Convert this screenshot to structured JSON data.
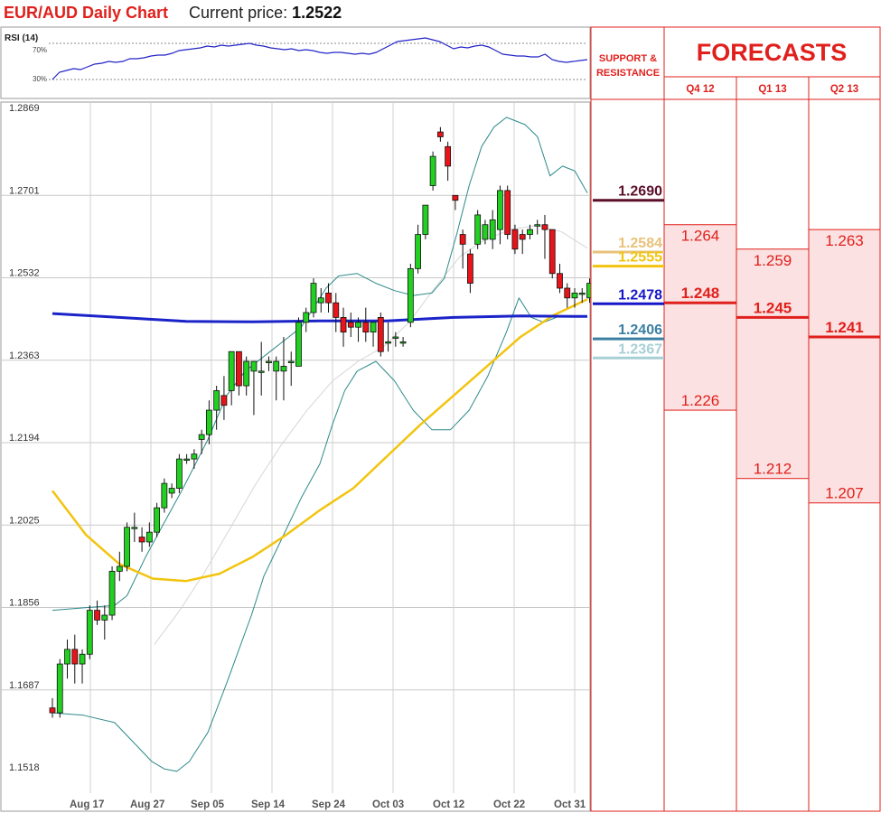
{
  "header": {
    "title": "EUR/AUD Daily Chart",
    "price_label": "Current price:",
    "price_value": "1.2522"
  },
  "rsi": {
    "label": "RSI (14)",
    "upper_label": "70%",
    "lower_label": "30%",
    "upper": 70,
    "lower": 30,
    "values": [
      30,
      38,
      40,
      42,
      41,
      44,
      47,
      48,
      50,
      49,
      50,
      53,
      53,
      54,
      56,
      57,
      57,
      59,
      62,
      63,
      64,
      65,
      67,
      66,
      68,
      67,
      68,
      69,
      70,
      68,
      67,
      65,
      64,
      63,
      64,
      62,
      63,
      62,
      60,
      59,
      60,
      60,
      59,
      58,
      59,
      58,
      60,
      64,
      68,
      72,
      73,
      74,
      75,
      76,
      74,
      72,
      68,
      64,
      66,
      65,
      67,
      68,
      66,
      62,
      58,
      57,
      56,
      56,
      55,
      55,
      58,
      52,
      50,
      49,
      50,
      51,
      52
    ]
  },
  "forecasts": {
    "title": "FORECASTS",
    "sr_header": "SUPPORT & RESISTANCE",
    "columns": [
      {
        "label": "Q4 12",
        "high": "1.264",
        "mid": "1.248",
        "low": "1.226",
        "high_v": 1.264,
        "mid_v": 1.248,
        "low_v": 1.226
      },
      {
        "label": "Q1 13",
        "high": "1.259",
        "mid": "1.245",
        "low": "1.212",
        "high_v": 1.259,
        "mid_v": 1.245,
        "low_v": 1.212
      },
      {
        "label": "Q2 13",
        "high": "1.263",
        "mid": "1.241",
        "low": "1.207",
        "high_v": 1.263,
        "mid_v": 1.241,
        "low_v": 1.207
      }
    ]
  },
  "levels": [
    {
      "label": "1.2690",
      "value": 1.269,
      "color": "#5a0f2a"
    },
    {
      "label": "1.2584",
      "value": 1.2584,
      "color": "#e8c27a"
    },
    {
      "label": "1.2555",
      "value": 1.2555,
      "color": "#f2c40f"
    },
    {
      "label": "1.2478",
      "value": 1.2478,
      "color": "#1717c9"
    },
    {
      "label": "1.2406",
      "value": 1.2406,
      "color": "#3a7ea2"
    },
    {
      "label": "1.2367",
      "value": 1.2367,
      "color": "#a8cfd6"
    }
  ],
  "chart_data": {
    "type": "candlestick",
    "title": "EUR/AUD Daily Chart",
    "ylim": [
      1.1518,
      1.2869
    ],
    "y_ticks": [
      "1.2869",
      "1.2701",
      "1.2532",
      "1.2363",
      "1.2194",
      "1.2025",
      "1.1856",
      "1.1687",
      "1.1518"
    ],
    "x_ticks": [
      "Aug 17",
      "Aug 27",
      "Sep 05",
      "Sep 14",
      "Sep 24",
      "Oct 03",
      "Oct 12",
      "Oct 22",
      "Oct 31"
    ],
    "x_tick_days": [
      7,
      15,
      23,
      31,
      39,
      47,
      55,
      63,
      71
    ],
    "grid": true,
    "candles": [
      {
        "o": 1.165,
        "h": 1.167,
        "l": 1.163,
        "c": 1.164
      },
      {
        "o": 1.164,
        "h": 1.175,
        "l": 1.163,
        "c": 1.174
      },
      {
        "o": 1.174,
        "h": 1.179,
        "l": 1.171,
        "c": 1.177
      },
      {
        "o": 1.177,
        "h": 1.18,
        "l": 1.17,
        "c": 1.174
      },
      {
        "o": 1.174,
        "h": 1.177,
        "l": 1.17,
        "c": 1.176
      },
      {
        "o": 1.176,
        "h": 1.186,
        "l": 1.175,
        "c": 1.185
      },
      {
        "o": 1.185,
        "h": 1.187,
        "l": 1.182,
        "c": 1.183
      },
      {
        "o": 1.183,
        "h": 1.186,
        "l": 1.179,
        "c": 1.184
      },
      {
        "o": 1.184,
        "h": 1.194,
        "l": 1.183,
        "c": 1.193
      },
      {
        "o": 1.193,
        "h": 1.197,
        "l": 1.191,
        "c": 1.194
      },
      {
        "o": 1.194,
        "h": 1.203,
        "l": 1.193,
        "c": 1.202
      },
      {
        "o": 1.202,
        "h": 1.205,
        "l": 1.199,
        "c": 1.202
      },
      {
        "o": 1.2,
        "h": 1.202,
        "l": 1.197,
        "c": 1.199
      },
      {
        "o": 1.199,
        "h": 1.203,
        "l": 1.198,
        "c": 1.201
      },
      {
        "o": 1.201,
        "h": 1.207,
        "l": 1.2,
        "c": 1.206
      },
      {
        "o": 1.206,
        "h": 1.212,
        "l": 1.205,
        "c": 1.211
      },
      {
        "o": 1.209,
        "h": 1.211,
        "l": 1.208,
        "c": 1.21
      },
      {
        "o": 1.21,
        "h": 1.217,
        "l": 1.209,
        "c": 1.216
      },
      {
        "o": 1.216,
        "h": 1.217,
        "l": 1.215,
        "c": 1.216
      },
      {
        "o": 1.216,
        "h": 1.218,
        "l": 1.214,
        "c": 1.217
      },
      {
        "o": 1.22,
        "h": 1.222,
        "l": 1.217,
        "c": 1.221
      },
      {
        "o": 1.221,
        "h": 1.228,
        "l": 1.219,
        "c": 1.226
      },
      {
        "o": 1.226,
        "h": 1.231,
        "l": 1.222,
        "c": 1.23
      },
      {
        "o": 1.229,
        "h": 1.233,
        "l": 1.224,
        "c": 1.227
      },
      {
        "o": 1.23,
        "h": 1.238,
        "l": 1.227,
        "c": 1.238
      },
      {
        "o": 1.238,
        "h": 1.238,
        "l": 1.229,
        "c": 1.231
      },
      {
        "o": 1.231,
        "h": 1.237,
        "l": 1.229,
        "c": 1.236
      },
      {
        "o": 1.234,
        "h": 1.236,
        "l": 1.225,
        "c": 1.236
      },
      {
        "o": 1.234,
        "h": 1.24,
        "l": 1.229,
        "c": 1.234
      },
      {
        "o": 1.236,
        "h": 1.237,
        "l": 1.234,
        "c": 1.236
      },
      {
        "o": 1.234,
        "h": 1.237,
        "l": 1.228,
        "c": 1.236
      },
      {
        "o": 1.234,
        "h": 1.241,
        "l": 1.228,
        "c": 1.235
      },
      {
        "o": 1.236,
        "h": 1.238,
        "l": 1.231,
        "c": 1.236
      },
      {
        "o": 1.235,
        "h": 1.245,
        "l": 1.235,
        "c": 1.244
      },
      {
        "o": 1.244,
        "h": 1.247,
        "l": 1.242,
        "c": 1.246
      },
      {
        "o": 1.246,
        "h": 1.253,
        "l": 1.245,
        "c": 1.252
      },
      {
        "o": 1.248,
        "h": 1.251,
        "l": 1.246,
        "c": 1.249
      },
      {
        "o": 1.25,
        "h": 1.252,
        "l": 1.246,
        "c": 1.248
      },
      {
        "o": 1.248,
        "h": 1.25,
        "l": 1.242,
        "c": 1.245
      },
      {
        "o": 1.245,
        "h": 1.247,
        "l": 1.239,
        "c": 1.242
      },
      {
        "o": 1.244,
        "h": 1.246,
        "l": 1.241,
        "c": 1.243
      },
      {
        "o": 1.243,
        "h": 1.245,
        "l": 1.24,
        "c": 1.244
      },
      {
        "o": 1.244,
        "h": 1.247,
        "l": 1.24,
        "c": 1.242
      },
      {
        "o": 1.242,
        "h": 1.244,
        "l": 1.239,
        "c": 1.244
      },
      {
        "o": 1.245,
        "h": 1.246,
        "l": 1.237,
        "c": 1.238
      },
      {
        "o": 1.24,
        "h": 1.244,
        "l": 1.238,
        "c": 1.24
      },
      {
        "o": 1.241,
        "h": 1.242,
        "l": 1.239,
        "c": 1.241
      },
      {
        "o": 1.24,
        "h": 1.241,
        "l": 1.239,
        "c": 1.24
      },
      {
        "o": 1.244,
        "h": 1.256,
        "l": 1.243,
        "c": 1.255
      },
      {
        "o": 1.255,
        "h": 1.264,
        "l": 1.254,
        "c": 1.262
      },
      {
        "o": 1.262,
        "h": 1.268,
        "l": 1.261,
        "c": 1.268
      },
      {
        "o": 1.272,
        "h": 1.279,
        "l": 1.271,
        "c": 1.278
      },
      {
        "o": 1.283,
        "h": 1.284,
        "l": 1.281,
        "c": 1.282
      },
      {
        "o": 1.28,
        "h": 1.281,
        "l": 1.273,
        "c": 1.276
      },
      {
        "o": 1.27,
        "h": 1.27,
        "l": 1.267,
        "c": 1.269
      },
      {
        "o": 1.262,
        "h": 1.263,
        "l": 1.255,
        "c": 1.26
      },
      {
        "o": 1.258,
        "h": 1.259,
        "l": 1.25,
        "c": 1.252
      },
      {
        "o": 1.26,
        "h": 1.267,
        "l": 1.259,
        "c": 1.266
      },
      {
        "o": 1.261,
        "h": 1.265,
        "l": 1.26,
        "c": 1.264
      },
      {
        "o": 1.261,
        "h": 1.267,
        "l": 1.259,
        "c": 1.265
      },
      {
        "o": 1.263,
        "h": 1.272,
        "l": 1.26,
        "c": 1.271
      },
      {
        "o": 1.271,
        "h": 1.272,
        "l": 1.261,
        "c": 1.262
      },
      {
        "o": 1.263,
        "h": 1.264,
        "l": 1.258,
        "c": 1.259
      },
      {
        "o": 1.262,
        "h": 1.263,
        "l": 1.258,
        "c": 1.261
      },
      {
        "o": 1.262,
        "h": 1.264,
        "l": 1.261,
        "c": 1.263
      },
      {
        "o": 1.264,
        "h": 1.265,
        "l": 1.262,
        "c": 1.264
      },
      {
        "o": 1.264,
        "h": 1.266,
        "l": 1.257,
        "c": 1.263
      },
      {
        "o": 1.263,
        "h": 1.263,
        "l": 1.253,
        "c": 1.254
      },
      {
        "o": 1.254,
        "h": 1.256,
        "l": 1.25,
        "c": 1.251
      },
      {
        "o": 1.251,
        "h": 1.252,
        "l": 1.247,
        "c": 1.249
      },
      {
        "o": 1.249,
        "h": 1.251,
        "l": 1.247,
        "c": 1.25
      },
      {
        "o": 1.25,
        "h": 1.251,
        "l": 1.248,
        "c": 1.25
      },
      {
        "o": 1.249,
        "h": 1.253,
        "l": 1.248,
        "c": 1.252
      },
      {
        "o": 1.25,
        "h": 1.254,
        "l": 1.249,
        "c": 1.253
      }
    ],
    "ma_blue": [
      [
        0,
        1.2458
      ],
      [
        10,
        1.245
      ],
      [
        20,
        1.2442
      ],
      [
        30,
        1.2441
      ],
      [
        40,
        1.2443
      ],
      [
        50,
        1.2443
      ],
      [
        60,
        1.245
      ],
      [
        70,
        1.2453
      ],
      [
        80,
        1.2452
      ]
    ],
    "ma_yellow": [
      [
        0,
        1.2095
      ],
      [
        5,
        1.2005
      ],
      [
        10,
        1.1945
      ],
      [
        15,
        1.1915
      ],
      [
        20,
        1.191
      ],
      [
        25,
        1.1925
      ],
      [
        30,
        1.196
      ],
      [
        35,
        1.2005
      ],
      [
        40,
        1.2055
      ],
      [
        45,
        1.21
      ],
      [
        50,
        1.2165
      ],
      [
        55,
        1.223
      ],
      [
        60,
        1.229
      ],
      [
        65,
        1.235
      ],
      [
        70,
        1.241
      ],
      [
        75,
        1.2455
      ],
      [
        80,
        1.2487
      ]
    ],
    "ma_gray": [
      [
        20,
        1.178
      ],
      [
        25,
        1.185
      ],
      [
        30,
        1.193
      ],
      [
        35,
        1.202
      ],
      [
        40,
        1.211
      ],
      [
        45,
        1.219
      ],
      [
        50,
        1.226
      ],
      [
        55,
        1.232
      ],
      [
        60,
        1.236
      ],
      [
        65,
        1.239
      ],
      [
        70,
        1.244
      ],
      [
        75,
        1.251
      ],
      [
        80,
        1.2575
      ],
      [
        85,
        1.261
      ],
      [
        90,
        1.263
      ],
      [
        95,
        1.2638
      ],
      [
        100,
        1.2625
      ],
      [
        105,
        1.2592
      ]
    ],
    "bb_upper": [
      [
        0,
        1.185
      ],
      [
        5,
        1.1855
      ],
      [
        10,
        1.186
      ],
      [
        12,
        1.188
      ],
      [
        15,
        1.196
      ],
      [
        18,
        1.203
      ],
      [
        21,
        1.21
      ],
      [
        25,
        1.22
      ],
      [
        28,
        1.229
      ],
      [
        31,
        1.234
      ],
      [
        35,
        1.238
      ],
      [
        38,
        1.241
      ],
      [
        40,
        1.243
      ],
      [
        42,
        1.247
      ],
      [
        44,
        1.251
      ],
      [
        46,
        1.2535
      ],
      [
        49,
        1.254
      ],
      [
        52,
        1.252
      ],
      [
        55,
        1.2505
      ],
      [
        58,
        1.2495
      ],
      [
        61,
        1.25
      ],
      [
        63,
        1.253
      ],
      [
        65,
        1.262
      ],
      [
        67,
        1.272
      ],
      [
        69,
        1.28
      ],
      [
        71,
        1.284
      ],
      [
        73,
        1.286
      ],
      [
        76,
        1.2845
      ],
      [
        78,
        1.282
      ],
      [
        80,
        1.274
      ],
      [
        82,
        1.276
      ],
      [
        84,
        1.275
      ],
      [
        86,
        1.2705
      ]
    ],
    "bb_lower": [
      [
        0,
        1.164
      ],
      [
        5,
        1.1635
      ],
      [
        10,
        1.162
      ],
      [
        13,
        1.158
      ],
      [
        16,
        1.154
      ],
      [
        18,
        1.1525
      ],
      [
        20,
        1.152
      ],
      [
        22,
        1.154
      ],
      [
        25,
        1.16
      ],
      [
        28,
        1.17
      ],
      [
        30,
        1.177
      ],
      [
        32,
        1.184
      ],
      [
        34,
        1.192
      ],
      [
        37,
        1.2
      ],
      [
        40,
        1.208
      ],
      [
        43,
        1.215
      ],
      [
        45,
        1.223
      ],
      [
        47,
        1.23
      ],
      [
        49,
        1.234
      ],
      [
        52,
        1.236
      ],
      [
        55,
        1.232
      ],
      [
        58,
        1.226
      ],
      [
        61,
        1.222
      ],
      [
        64,
        1.222
      ],
      [
        67,
        1.226
      ],
      [
        70,
        1.233
      ],
      [
        73,
        1.242
      ],
      [
        75,
        1.249
      ],
      [
        77,
        1.245
      ],
      [
        79,
        1.244
      ],
      [
        81,
        1.245
      ]
    ]
  }
}
